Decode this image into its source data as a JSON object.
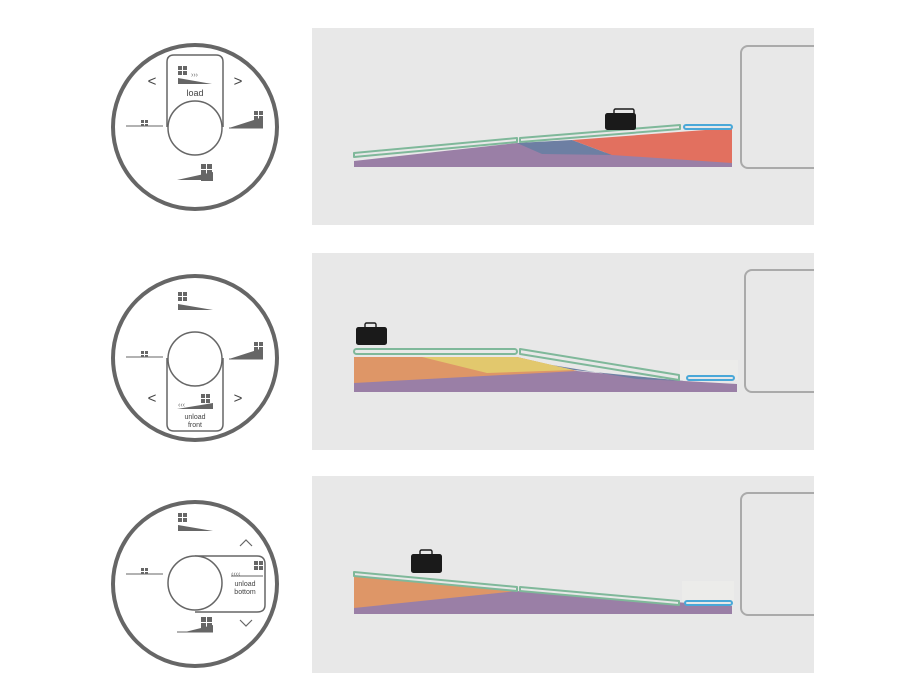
{
  "colors": {
    "outline": "#666666",
    "panel_bg": "#e8e8e8",
    "ramp_outline": "#7fb89a",
    "end_plate": "#4aa8d8",
    "purple": "#9a7fa6",
    "blue_grey": "#6d7fa3",
    "red": "#e2705f",
    "orange": "#de9667",
    "yellow": "#e2c86d",
    "bag": "#1a1a1a"
  },
  "rows": [
    {
      "mode": "load",
      "dial": {
        "selected_position": "top",
        "label_lines": [
          "load"
        ],
        "left_arrow": "<",
        "right_arrow": ">",
        "icons": [
          "load-icon",
          "unload-left-icon",
          "unload-right-icon",
          "unload-bottom-icon"
        ]
      },
      "scene": {
        "ramp_state": "loading",
        "bag": "on-upper-ramp"
      }
    },
    {
      "mode": "unload-front",
      "dial": {
        "selected_position": "bottom",
        "label_lines": [
          "unload",
          "front"
        ],
        "left_arrow": "<",
        "right_arrow": ">",
        "icons": [
          "load-icon",
          "unload-left-icon",
          "unload-right-icon",
          "unload-front-icon"
        ]
      },
      "scene": {
        "ramp_state": "unloading-front",
        "bag": "on-flat-left"
      }
    },
    {
      "mode": "unload-bottom",
      "dial": {
        "selected_position": "right",
        "label_lines": [
          "unload",
          "bottom"
        ],
        "up_arrow": "^",
        "down_arrow": "v",
        "icons": [
          "load-icon",
          "unload-left-icon",
          "unload-bottom-icon",
          "unload-front-icon"
        ]
      },
      "scene": {
        "ramp_state": "unloading-bottom",
        "bag": "on-lower-ramp"
      }
    }
  ]
}
